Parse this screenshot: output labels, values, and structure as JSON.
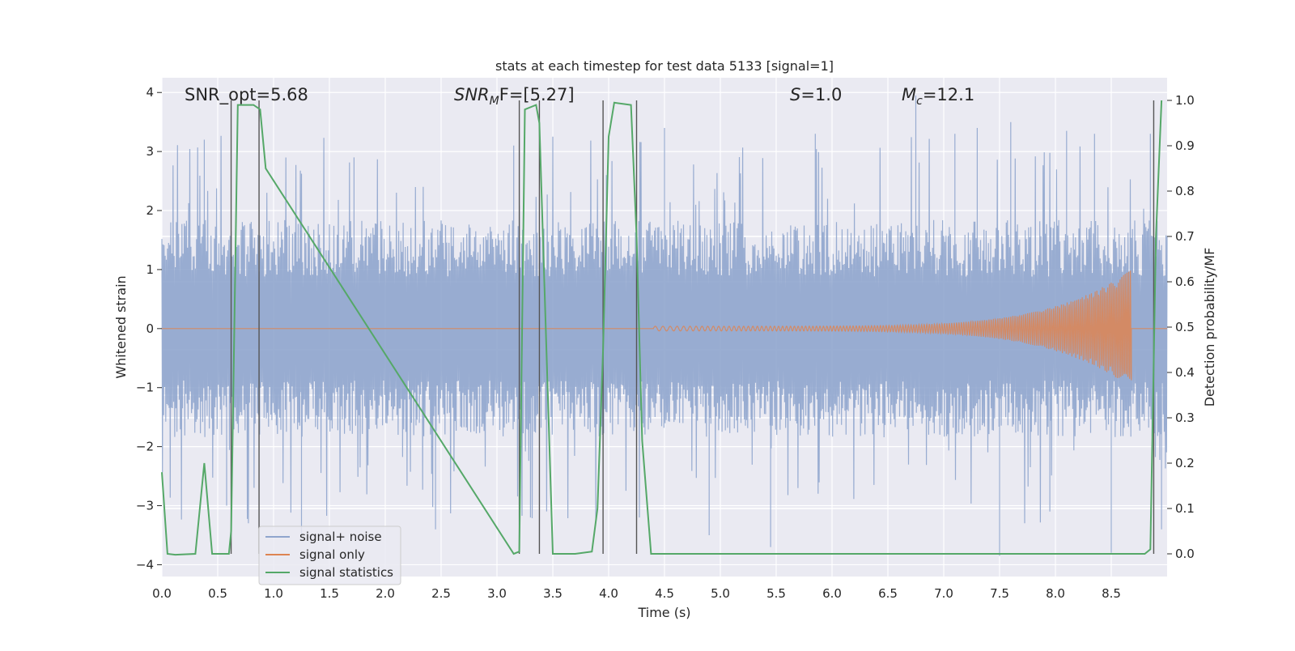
{
  "chart_data": {
    "type": "line",
    "title": "stats at each timestep for test data 5133 [signal=1]",
    "xlabel": "Time (s)",
    "ylabel_left": "Whitened strain",
    "ylabel_right": "Detection probability/MF",
    "xlim": [
      0.0,
      9.0
    ],
    "ylim_left": [
      -4.2,
      4.25
    ],
    "ylim_right": [
      -0.05,
      1.05
    ],
    "grid": true,
    "legend_placement": "lower-left",
    "x_ticks": [
      "0.0",
      "0.5",
      "1.0",
      "1.5",
      "2.0",
      "2.5",
      "3.0",
      "3.5",
      "4.0",
      "4.5",
      "5.0",
      "5.5",
      "6.0",
      "6.5",
      "7.0",
      "7.5",
      "8.0",
      "8.5"
    ],
    "y_ticks_left": [
      "−4",
      "−3",
      "−2",
      "−1",
      "0",
      "1",
      "2",
      "3",
      "4"
    ],
    "y_ticks_right": [
      "0.0",
      "0.1",
      "0.2",
      "0.3",
      "0.4",
      "0.5",
      "0.6",
      "0.7",
      "0.8",
      "0.9",
      "1.0"
    ],
    "annotations": {
      "snr_opt": "SNR_opt=5.68",
      "snr_mf_main": "SNR",
      "snr_mf_sub": "M",
      "snr_mf_rest": "F=[5.27]",
      "s_main": "S",
      "s_rest": "=1.0",
      "mc_main": "M",
      "mc_sub": "c",
      "mc_rest": "=12.1"
    },
    "series": [
      {
        "name": "signal+ noise",
        "color": "#8fa5cd",
        "description_values": "noise band between about -1.6 and 1.6, with spikes reaching about -3.9 and 3.9",
        "band_low": -1.6,
        "band_high": 1.6,
        "spikes": [
          [
            0.38,
            3.2
          ],
          [
            0.58,
            -3.0
          ],
          [
            1.25,
            -3.5
          ],
          [
            1.72,
            2.9
          ],
          [
            2.45,
            -3.4
          ],
          [
            3.15,
            3.1
          ],
          [
            3.3,
            -3.2
          ],
          [
            4.5,
            3.4
          ],
          [
            4.9,
            -3.5
          ],
          [
            5.45,
            -3.7
          ],
          [
            5.85,
            3.3
          ],
          [
            6.75,
            3.95
          ],
          [
            7.1,
            3.3
          ],
          [
            7.3,
            3.4
          ],
          [
            7.5,
            -3.85
          ],
          [
            7.6,
            3.5
          ],
          [
            7.95,
            -3.1
          ],
          [
            8.1,
            3.35
          ],
          [
            8.35,
            3.3
          ],
          [
            8.5,
            -3.8
          ],
          [
            8.85,
            3.3
          ],
          [
            8.95,
            -3.4
          ]
        ]
      },
      {
        "name": "signal only",
        "color": "#dd8452",
        "description_values": "chirp near zero, amplitude growing from ~0 at 4.4 s to about ±1.0 at 8.65 s, then zero",
        "chirp_start": 4.4,
        "chirp_end": 8.68,
        "chirp_peak_amplitude": 1.0
      },
      {
        "name": "signal statistics",
        "color": "#55a868",
        "axis": "right",
        "x": [
          0.0,
          0.05,
          0.12,
          0.3,
          0.38,
          0.45,
          0.6,
          0.62,
          0.68,
          0.82,
          0.88,
          0.93,
          3.15,
          3.2,
          3.25,
          3.35,
          3.38,
          3.5,
          3.7,
          3.85,
          3.9,
          3.95,
          4.0,
          4.05,
          4.2,
          4.25,
          4.3,
          4.38,
          4.45,
          8.8,
          8.85,
          8.9,
          8.95
        ],
        "y": [
          0.18,
          0.0,
          -0.002,
          0.0,
          0.2,
          0.0,
          0.0,
          0.05,
          0.99,
          0.99,
          0.98,
          0.85,
          0.0,
          0.005,
          0.98,
          0.99,
          0.95,
          0.0,
          0.0,
          0.005,
          0.1,
          0.45,
          0.92,
          0.995,
          0.99,
          0.7,
          0.25,
          0.0,
          0.0,
          0.0,
          0.01,
          0.7,
          1.0
        ]
      }
    ],
    "threshold_lines_right": [
      0.1,
      0.3,
      0.35,
      0.45,
      0.6,
      0.7
    ],
    "vertical_markers": [
      0.62,
      0.87,
      3.2,
      3.38,
      3.95,
      4.25,
      8.88
    ]
  }
}
